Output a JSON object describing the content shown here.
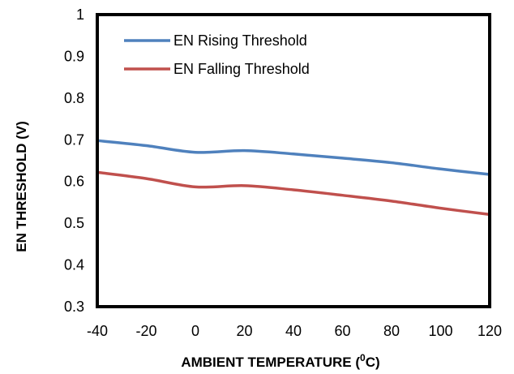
{
  "chart_data": {
    "type": "line",
    "title": "",
    "xlabel": "AMBIENT  TEMPERATURE  (",
    "xlabel_superscript": "0",
    "xlabel_suffix": "C)",
    "ylabel": "EN THRESHOLD  (V)",
    "xlim": [
      -40,
      120
    ],
    "ylim": [
      0.3,
      1.0
    ],
    "x_ticks": [
      "-40",
      "-20",
      "0",
      "20",
      "40",
      "60",
      "80",
      "100",
      "120"
    ],
    "y_ticks": [
      "0.3",
      "0.4",
      "0.5",
      "0.6",
      "0.7",
      "0.8",
      "0.9",
      "1"
    ],
    "grid": false,
    "legend_position": "top-left",
    "series": [
      {
        "name": "EN Rising Threshold",
        "color": "#4f81bd",
        "x": [
          -40,
          -20,
          0,
          20,
          40,
          60,
          80,
          100,
          120
        ],
        "y": [
          0.698,
          0.686,
          0.67,
          0.674,
          0.666,
          0.656,
          0.645,
          0.63,
          0.617
        ]
      },
      {
        "name": "EN Falling Threshold",
        "color": "#c0504d",
        "x": [
          -40,
          -20,
          0,
          20,
          40,
          60,
          80,
          100,
          120
        ],
        "y": [
          0.622,
          0.607,
          0.587,
          0.59,
          0.58,
          0.567,
          0.553,
          0.536,
          0.521
        ]
      }
    ]
  }
}
